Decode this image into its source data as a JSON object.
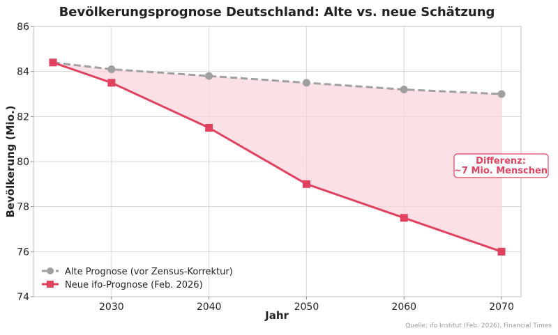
{
  "chart_data": {
    "type": "line",
    "title": "Bevölkerungsprognose Deutschland: Alte vs. neue Schätzung",
    "xlabel": "Jahr",
    "ylabel": "Bevölkerung (Mio.)",
    "xlim": [
      2022,
      2072
    ],
    "ylim": [
      74,
      86
    ],
    "xticks": [
      2030,
      2040,
      2050,
      2060,
      2070
    ],
    "yticks": [
      74,
      76,
      78,
      80,
      82,
      84,
      86
    ],
    "grid": true,
    "legend_position": "bottom-left",
    "series": [
      {
        "name": "Alte Prognose (vor Zensus-Korrektur)",
        "color": "#a0a0a0",
        "style": "dashed",
        "marker": "circle",
        "x": [
          2024,
          2030,
          2040,
          2050,
          2060,
          2070
        ],
        "y": [
          84.4,
          84.1,
          83.8,
          83.5,
          83.2,
          83.0
        ]
      },
      {
        "name": "Neue ifo-Prognose (Feb. 2026)",
        "color": "#e0415f",
        "style": "solid",
        "marker": "square",
        "x": [
          2024,
          2030,
          2040,
          2050,
          2060,
          2070
        ],
        "y": [
          84.4,
          83.5,
          81.5,
          79.0,
          77.5,
          76.0
        ]
      }
    ],
    "fill_between": {
      "color": "#f9d3db"
    },
    "annotation": {
      "lines": [
        "Differenz:",
        "~7 Mio. Menschen"
      ],
      "color": "#e0415f"
    },
    "source": "Quelle: ifo Institut (Feb. 2026), Financial Times"
  }
}
